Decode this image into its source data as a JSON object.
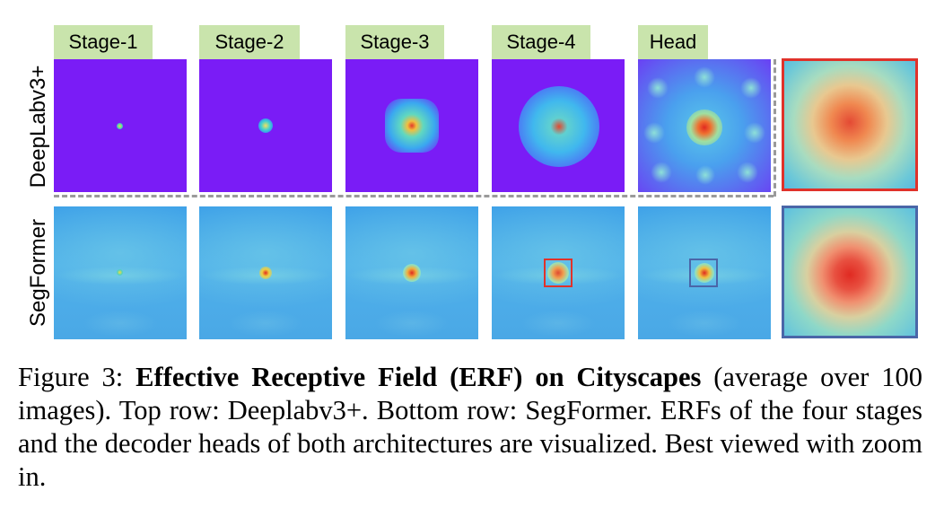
{
  "figure": {
    "stage_labels": [
      "Stage-1",
      "Stage-2",
      "Stage-3",
      "Stage-4",
      "Head"
    ],
    "row_labels": [
      "DeepLabv3+",
      "SegFormer"
    ],
    "colors": {
      "label_bg": "#c9e4ac",
      "deeplab_bg": "#7a1cf6",
      "segformer_bg": "#4aa8e6",
      "highlight_red": "#e0322a",
      "highlight_blue": "#4a66a8",
      "divider": "#9a9a9a"
    }
  },
  "caption": {
    "prefix": "Figure 3: ",
    "title": "Effective Receptive Field (ERF) on Cityscapes",
    "body": " (average over 100 images). Top row: Deeplabv3+. Bottom row: SegFormer. ERFs of the four stages and the decoder heads of both architectures are visualized. Best viewed with zoom in."
  }
}
